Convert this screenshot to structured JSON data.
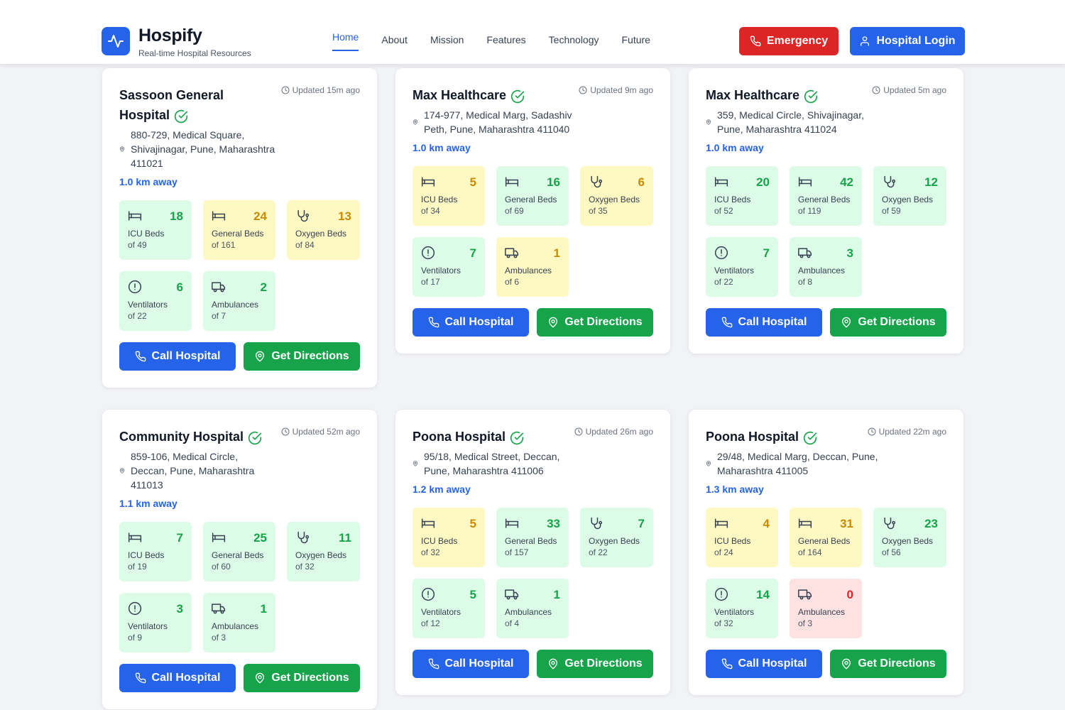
{
  "brand": {
    "title": "Hospify",
    "subtitle": "Real-time Hospital Resources"
  },
  "nav": [
    "Home",
    "About",
    "Mission",
    "Features",
    "Technology",
    "Future"
  ],
  "buttons": {
    "emergency": "Emergency",
    "login": "Hospital Login",
    "call": "Call Hospital",
    "directions": "Get Directions"
  },
  "colors": {
    "primary": "#2563eb",
    "danger": "#dc2626",
    "success": "#16a34a",
    "warning": "#ca8a04"
  },
  "hospitals": [
    {
      "name": "Sassoon General Hospital",
      "updated": "Updated 15m ago",
      "address": "880-729, Medical Square, Shivajinagar, Pune, Maharashtra 411021",
      "distance": "1.0 km away",
      "resources": [
        {
          "icon": "bed-icon",
          "value": "18",
          "label": "ICU Beds",
          "total": "of 49",
          "status": "g"
        },
        {
          "icon": "bed-icon",
          "value": "24",
          "label": "General Beds",
          "total": "of 161",
          "status": "y"
        },
        {
          "icon": "stethoscope-icon",
          "value": "13",
          "label": "Oxygen Beds",
          "total": "of 84",
          "status": "y"
        },
        {
          "icon": "alert-circle-icon",
          "value": "6",
          "label": "Ventilators",
          "total": "of 22",
          "status": "g"
        },
        {
          "icon": "truck-icon",
          "value": "2",
          "label": "Ambulances",
          "total": "of 7",
          "status": "g"
        }
      ]
    },
    {
      "name": "Max Healthcare",
      "updated": "Updated 9m ago",
      "address": "174-977, Medical Marg, Sadashiv Peth, Pune, Maharashtra 411040",
      "distance": "1.0 km away",
      "resources": [
        {
          "icon": "bed-icon",
          "value": "5",
          "label": "ICU Beds",
          "total": "of 34",
          "status": "y"
        },
        {
          "icon": "bed-icon",
          "value": "16",
          "label": "General Beds",
          "total": "of 69",
          "status": "g"
        },
        {
          "icon": "stethoscope-icon",
          "value": "6",
          "label": "Oxygen Beds",
          "total": "of 35",
          "status": "y"
        },
        {
          "icon": "alert-circle-icon",
          "value": "7",
          "label": "Ventilators",
          "total": "of 17",
          "status": "g"
        },
        {
          "icon": "truck-icon",
          "value": "1",
          "label": "Ambulances",
          "total": "of 6",
          "status": "y"
        }
      ]
    },
    {
      "name": "Max Healthcare",
      "updated": "Updated 5m ago",
      "address": "359, Medical Circle, Shivajinagar, Pune, Maharashtra 411024",
      "distance": "1.0 km away",
      "resources": [
        {
          "icon": "bed-icon",
          "value": "20",
          "label": "ICU Beds",
          "total": "of 52",
          "status": "g"
        },
        {
          "icon": "bed-icon",
          "value": "42",
          "label": "General Beds",
          "total": "of 119",
          "status": "g"
        },
        {
          "icon": "stethoscope-icon",
          "value": "12",
          "label": "Oxygen Beds",
          "total": "of 59",
          "status": "g"
        },
        {
          "icon": "alert-circle-icon",
          "value": "7",
          "label": "Ventilators",
          "total": "of 22",
          "status": "g"
        },
        {
          "icon": "truck-icon",
          "value": "3",
          "label": "Ambulances",
          "total": "of 8",
          "status": "g"
        }
      ]
    },
    {
      "name": "Community Hospital",
      "updated": "Updated 52m ago",
      "address": "859-106, Medical Circle, Deccan, Pune, Maharashtra 411013",
      "distance": "1.1 km away",
      "resources": [
        {
          "icon": "bed-icon",
          "value": "7",
          "label": "ICU Beds",
          "total": "of 19",
          "status": "g"
        },
        {
          "icon": "bed-icon",
          "value": "25",
          "label": "General Beds",
          "total": "of 60",
          "status": "g"
        },
        {
          "icon": "stethoscope-icon",
          "value": "11",
          "label": "Oxygen Beds",
          "total": "of 32",
          "status": "g"
        },
        {
          "icon": "alert-circle-icon",
          "value": "3",
          "label": "Ventilators",
          "total": "of 9",
          "status": "g"
        },
        {
          "icon": "truck-icon",
          "value": "1",
          "label": "Ambulances",
          "total": "of 3",
          "status": "g"
        }
      ]
    },
    {
      "name": "Poona Hospital",
      "updated": "Updated 26m ago",
      "address": "95/18, Medical Street, Deccan, Pune, Maharashtra 411006",
      "distance": "1.2 km away",
      "resources": [
        {
          "icon": "bed-icon",
          "value": "5",
          "label": "ICU Beds",
          "total": "of 32",
          "status": "y"
        },
        {
          "icon": "bed-icon",
          "value": "33",
          "label": "General Beds",
          "total": "of 157",
          "status": "g"
        },
        {
          "icon": "stethoscope-icon",
          "value": "7",
          "label": "Oxygen Beds",
          "total": "of 22",
          "status": "g"
        },
        {
          "icon": "alert-circle-icon",
          "value": "5",
          "label": "Ventilators",
          "total": "of 12",
          "status": "g"
        },
        {
          "icon": "truck-icon",
          "value": "1",
          "label": "Ambulances",
          "total": "of 4",
          "status": "g"
        }
      ]
    },
    {
      "name": "Poona Hospital",
      "updated": "Updated 22m ago",
      "address": "29/48, Medical Marg, Deccan, Pune, Maharashtra 411005",
      "distance": "1.3 km away",
      "resources": [
        {
          "icon": "bed-icon",
          "value": "4",
          "label": "ICU Beds",
          "total": "of 24",
          "status": "y"
        },
        {
          "icon": "bed-icon",
          "value": "31",
          "label": "General Beds",
          "total": "of 164",
          "status": "y"
        },
        {
          "icon": "stethoscope-icon",
          "value": "23",
          "label": "Oxygen Beds",
          "total": "of 56",
          "status": "g"
        },
        {
          "icon": "alert-circle-icon",
          "value": "14",
          "label": "Ventilators",
          "total": "of 32",
          "status": "g"
        },
        {
          "icon": "truck-icon",
          "value": "0",
          "label": "Ambulances",
          "total": "of 3",
          "status": "r"
        }
      ]
    }
  ]
}
